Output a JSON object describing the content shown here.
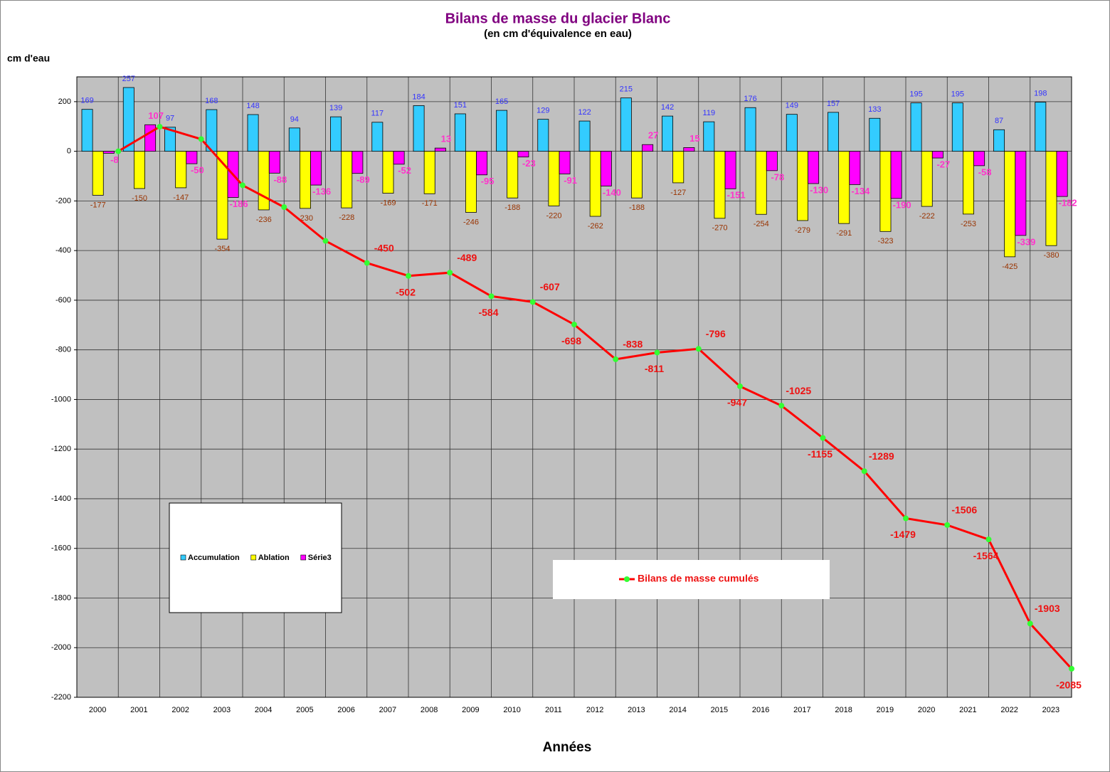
{
  "chart_data": {
    "type": "bar",
    "title": "Bilans de masse du glacier Blanc",
    "subtitle": "(en cm d'équivalence en eau)",
    "y_label": "cm d'eau",
    "x_label": "Années",
    "categories": [
      "2000",
      "2001",
      "2002",
      "2003",
      "2004",
      "2005",
      "2006",
      "2007",
      "2008",
      "2009",
      "2010",
      "2011",
      "2012",
      "2013",
      "2014",
      "2015",
      "2016",
      "2017",
      "2018",
      "2019",
      "2020",
      "2021",
      "2022",
      "2023"
    ],
    "series": [
      {
        "name": "Accumulation",
        "type": "bar",
        "color": "#33ccff",
        "label_color": "#3333ff",
        "values": [
          169,
          257,
          97,
          168,
          148,
          94,
          139,
          117,
          184,
          151,
          165,
          129,
          122,
          215,
          142,
          119,
          176,
          149,
          157,
          133,
          195,
          195,
          87,
          198
        ]
      },
      {
        "name": "Ablation",
        "type": "bar",
        "color": "#ffff00",
        "label_color": "#993300",
        "values": [
          -177,
          -150,
          -147,
          -354,
          -236,
          -230,
          -228,
          -169,
          -171,
          -246,
          -188,
          -220,
          -262,
          -188,
          -127,
          -270,
          -254,
          -279,
          -291,
          -323,
          -222,
          -253,
          -425,
          -380
        ]
      },
      {
        "name": "Série3",
        "type": "bar",
        "color": "#ff00ff",
        "label_color": "#ff33cc",
        "values": [
          -8,
          107,
          -50,
          -186,
          -88,
          -136,
          -89,
          -52,
          13,
          -95,
          -23,
          -91,
          -140,
          27,
          15,
          -151,
          -78,
          -130,
          -134,
          -190,
          -27,
          -58,
          -339,
          -182
        ]
      },
      {
        "name": "Bilans de masse cumulés",
        "type": "line",
        "color": "#ff0000",
        "marker_color": "#33ff33",
        "label_color": "#ee1111",
        "values": [
          0,
          99,
          49,
          -137,
          -225,
          -361,
          -450,
          -502,
          -489,
          -584,
          -607,
          -698,
          -838,
          -811,
          -796,
          -947,
          -1025,
          -1155,
          -1289,
          -1479,
          -1506,
          -1564,
          -1903,
          -2085
        ],
        "value_labels": [
          null,
          null,
          null,
          null,
          null,
          null,
          "-450",
          "-502",
          "-489",
          "-584",
          "-607",
          "-698",
          "-838",
          "-811",
          "-796",
          "-947",
          "-1025",
          "-1155",
          "-1289",
          "-1479",
          "-1506",
          "-1564",
          "-1903",
          "-2085"
        ]
      }
    ],
    "ylim": [
      -2200,
      300
    ],
    "yticks": [
      200,
      0,
      -200,
      -400,
      -600,
      -800,
      -1000,
      -1200,
      -1400,
      -1600,
      -1800,
      -2000,
      -2200
    ],
    "grid": true
  }
}
